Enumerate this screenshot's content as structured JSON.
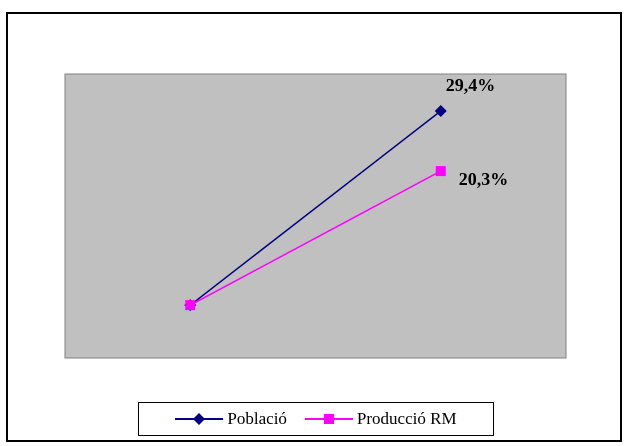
{
  "chart_data": {
    "type": "line",
    "x": [
      "",
      ""
    ],
    "series": [
      {
        "name": "Població",
        "values": [
          0,
          29.4
        ],
        "label": "29,4%",
        "color": "#000080",
        "marker": "diamond"
      },
      {
        "name": "Producció RM",
        "values": [
          0,
          20.3
        ],
        "label": "20,3%",
        "color": "#ff00ff",
        "marker": "square"
      }
    ],
    "title": "",
    "xlabel": "",
    "ylabel": "",
    "ylim": [
      -8,
      35
    ],
    "grid": false,
    "legend": "bottom",
    "plot_background": "#c0c0c0"
  }
}
